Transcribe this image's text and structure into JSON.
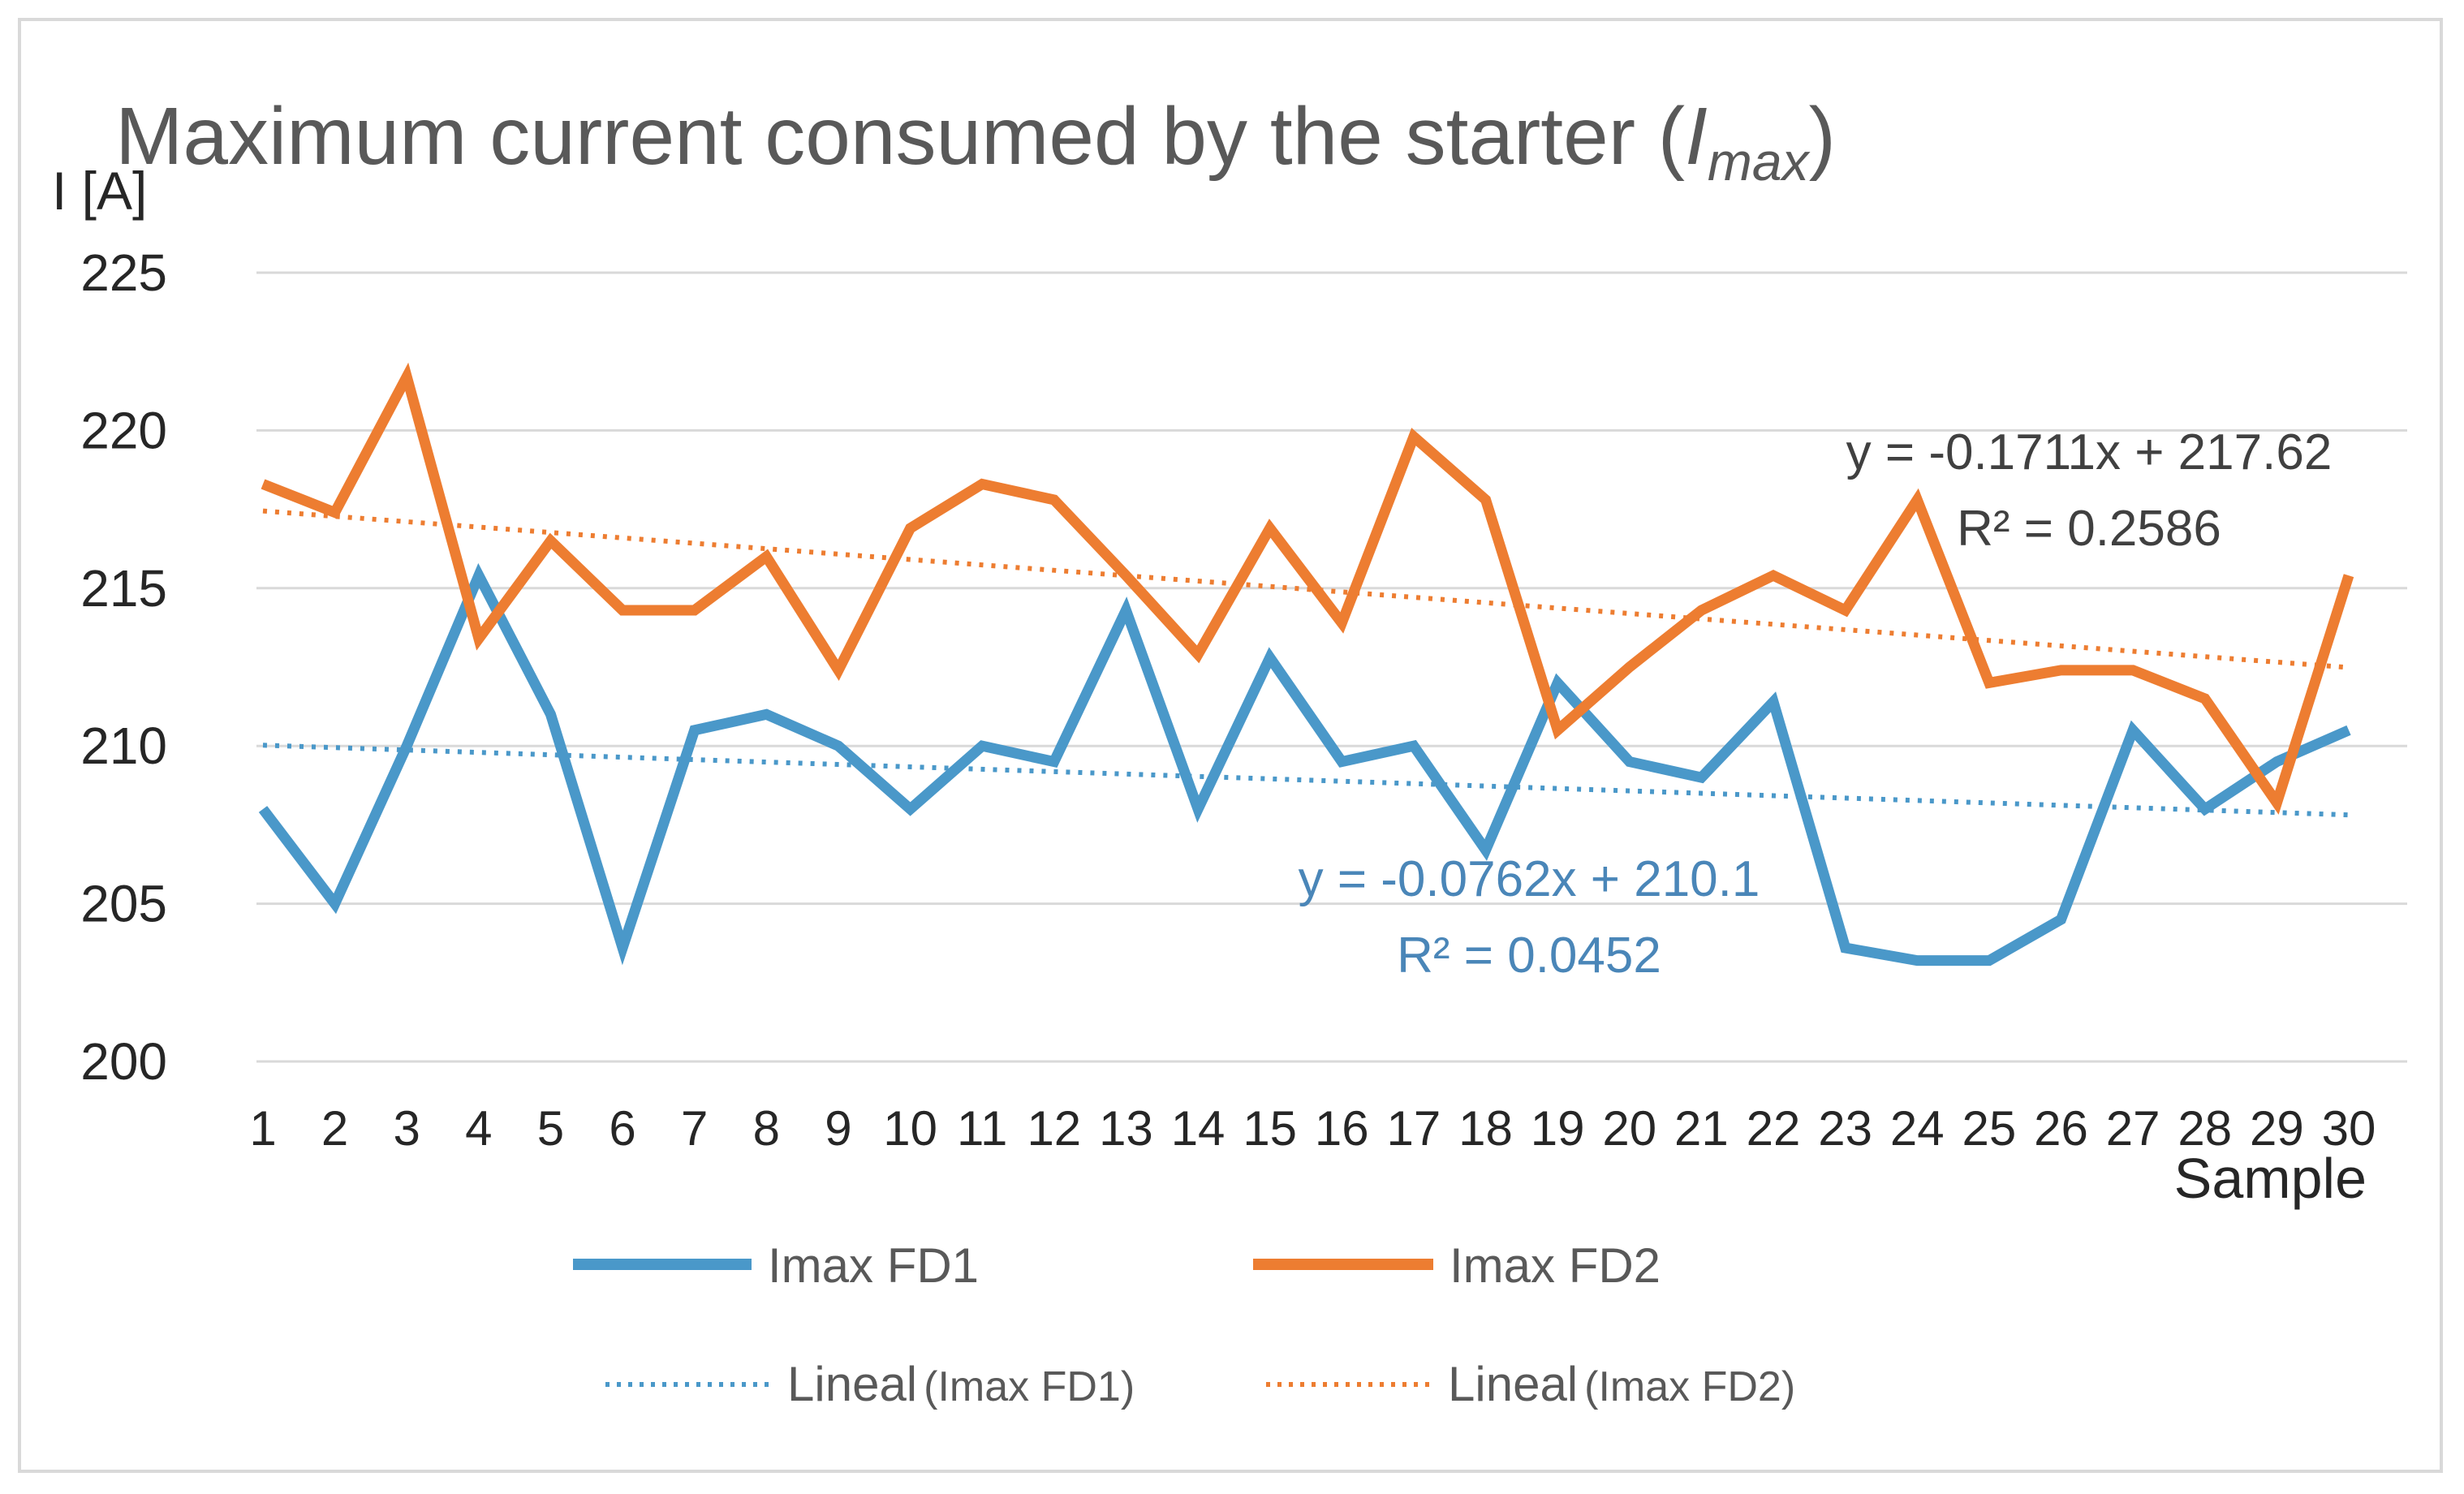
{
  "chart_data": {
    "type": "line",
    "title": "Maximum current consumed by the starter (",
    "title_var_main": "I",
    "title_var_sub": "max",
    "title_close": ")",
    "ylabel": "I [A]",
    "xlabel": "Sample",
    "ylim": [
      200,
      225
    ],
    "yticks": [
      "200",
      "205",
      "210",
      "215",
      "220",
      "225"
    ],
    "categories": [
      "1",
      "2",
      "3",
      "4",
      "5",
      "6",
      "7",
      "8",
      "9",
      "10",
      "11",
      "12",
      "13",
      "14",
      "15",
      "16",
      "17",
      "18",
      "19",
      "20",
      "21",
      "22",
      "23",
      "24",
      "25",
      "26",
      "27",
      "28",
      "29",
      "30"
    ],
    "grid": true,
    "series": [
      {
        "name": "Imax FD1",
        "color": "#4a98c9",
        "values": [
          208.0,
          205.0,
          210.0,
          215.4,
          211.0,
          203.6,
          210.5,
          211.0,
          210.0,
          208.0,
          210.0,
          209.5,
          214.3,
          208.0,
          212.8,
          209.5,
          210.0,
          206.7,
          212.0,
          209.5,
          209.0,
          211.4,
          203.6,
          203.2,
          203.2,
          204.5,
          210.5,
          208.0,
          209.5,
          210.5
        ]
      },
      {
        "name": "Imax FD2",
        "color": "#ed7d31",
        "values": [
          218.3,
          217.4,
          221.7,
          213.4,
          216.5,
          214.3,
          214.3,
          216.0,
          212.4,
          216.9,
          218.3,
          217.8,
          215.4,
          212.9,
          216.9,
          213.9,
          219.8,
          217.8,
          210.5,
          212.5,
          214.3,
          215.4,
          214.3,
          217.8,
          212.0,
          212.4,
          212.4,
          211.5,
          208.2,
          215.4
        ]
      }
    ],
    "trendlines": [
      {
        "name": "Lineal",
        "legend_series": "(Imax FD1)",
        "color": "#4a98c9",
        "slope": -0.0762,
        "intercept": 210.1,
        "equation": "y = -0.0762x + 210.1",
        "r2": "R² = 0.0452"
      },
      {
        "name": "Lineal",
        "legend_series": "(Imax FD2)",
        "color": "#ed7d31",
        "slope": -0.1711,
        "intercept": 217.62,
        "equation": "y = -0.1711x + 217.62",
        "r2": "R² = 0.2586"
      }
    ],
    "legend_position": "bottom"
  }
}
